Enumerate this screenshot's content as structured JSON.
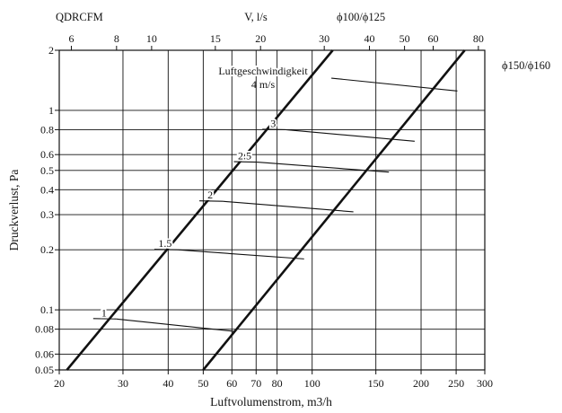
{
  "chart_data": {
    "type": "line",
    "top_left_label": "QDRCFM",
    "top_axis_title": "V, l/s",
    "xlabel": "Luftvolumenstrom, m3/h",
    "ylabel": "Druckverlust, Pa",
    "x_scale": "log",
    "y_scale": "log",
    "xlim": [
      20,
      300
    ],
    "ylim": [
      0.05,
      2
    ],
    "x_ticks": [
      20,
      30,
      40,
      50,
      60,
      70,
      80,
      100,
      150,
      200,
      250,
      300
    ],
    "x_tick_labels": [
      "20",
      "30",
      "40",
      "50",
      "60",
      "70",
      "80",
      "100",
      "150",
      "200",
      "250",
      "300"
    ],
    "top_ticks_ls": [
      6,
      8,
      10,
      15,
      20,
      30,
      40,
      50,
      60,
      80
    ],
    "top_tick_labels": [
      "6",
      "8",
      "10",
      "15",
      "20",
      "30",
      "40",
      "50",
      "60",
      "80"
    ],
    "y_ticks": [
      0.05,
      0.06,
      0.08,
      0.1,
      0.2,
      0.3,
      0.4,
      0.5,
      0.6,
      0.8,
      1,
      2
    ],
    "y_tick_labels": [
      "0.05",
      "0.06",
      "0.08",
      "0.1",
      "0.2",
      "0.3",
      "0.4",
      "0.5",
      "0.6",
      "0.8",
      "1",
      "2"
    ],
    "grid": true,
    "series": [
      {
        "name": "ϕ100/ϕ125",
        "points": [
          [
            21,
            0.05
          ],
          [
            114,
            2
          ]
        ]
      },
      {
        "name": "ϕ150/ϕ160",
        "points": [
          [
            50,
            0.05
          ],
          [
            264,
            2
          ]
        ]
      }
    ],
    "velocity_title": "Luftgeschwindigkeit",
    "velocity_lines": [
      {
        "label": "1",
        "from": [
          28.8,
          0.09
        ],
        "to": [
          61,
          0.078
        ]
      },
      {
        "label": "1.5",
        "from": [
          42.5,
          0.2
        ],
        "to": [
          95,
          0.18
        ]
      },
      {
        "label": "2",
        "from": [
          56.6,
          0.35
        ],
        "to": [
          130,
          0.31
        ]
      },
      {
        "label": "2.5",
        "from": [
          70.5,
          0.55
        ],
        "to": [
          163,
          0.49
        ]
      },
      {
        "label": "3",
        "from": [
          84.5,
          0.8
        ],
        "to": [
          192,
          0.7
        ]
      },
      {
        "label": "4 m/s",
        "from": [
          113,
          1.45
        ],
        "to": [
          252,
          1.25
        ]
      }
    ]
  }
}
